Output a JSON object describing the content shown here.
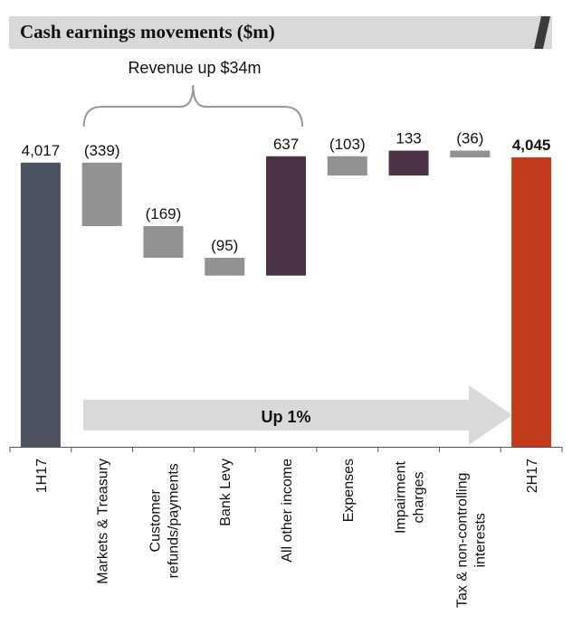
{
  "header": {
    "title": "Cash earnings movements ($m)"
  },
  "chart_data": {
    "type": "waterfall",
    "title": "Cash earnings movements ($m)",
    "categories": [
      "1H17",
      "Markets & Treasury",
      "Customer refunds/payments",
      "Bank Levy",
      "All other income",
      "Expenses",
      "Impairment charges",
      "Tax & non-controlling interests",
      "2H17"
    ],
    "category_label_lines": [
      [
        "1H17"
      ],
      [
        "Markets & Treasury"
      ],
      [
        "Customer",
        "refunds/payments"
      ],
      [
        "Bank Levy"
      ],
      [
        "All other income"
      ],
      [
        "Expenses"
      ],
      [
        "Impairment",
        "charges"
      ],
      [
        "Tax & non-controlling",
        "interests"
      ],
      [
        "2H17"
      ]
    ],
    "values": [
      4017,
      -339,
      -169,
      -95,
      637,
      -103,
      133,
      -36,
      4045
    ],
    "value_labels": [
      "4,017",
      "(339)",
      "(169)",
      "(95)",
      "637",
      "(103)",
      "133",
      "(36)",
      "4,045"
    ],
    "bar_kinds": [
      "total",
      "delta",
      "delta",
      "delta",
      "delta",
      "delta",
      "delta",
      "delta",
      "total"
    ],
    "ylim": [
      2500,
      4200
    ],
    "colors": {
      "start_total": "#4b5361",
      "decrease": "#929292",
      "increase": "#4b3448",
      "end_total": "#c23b1a",
      "arrow": "#d9d9d9",
      "brace": "#999999",
      "axis": "#555555"
    },
    "annotations": {
      "bracket_label": "Revenue up $34m",
      "bracket_from_index": 1,
      "bracket_to_index": 4,
      "arrow_label": "Up 1%"
    }
  }
}
